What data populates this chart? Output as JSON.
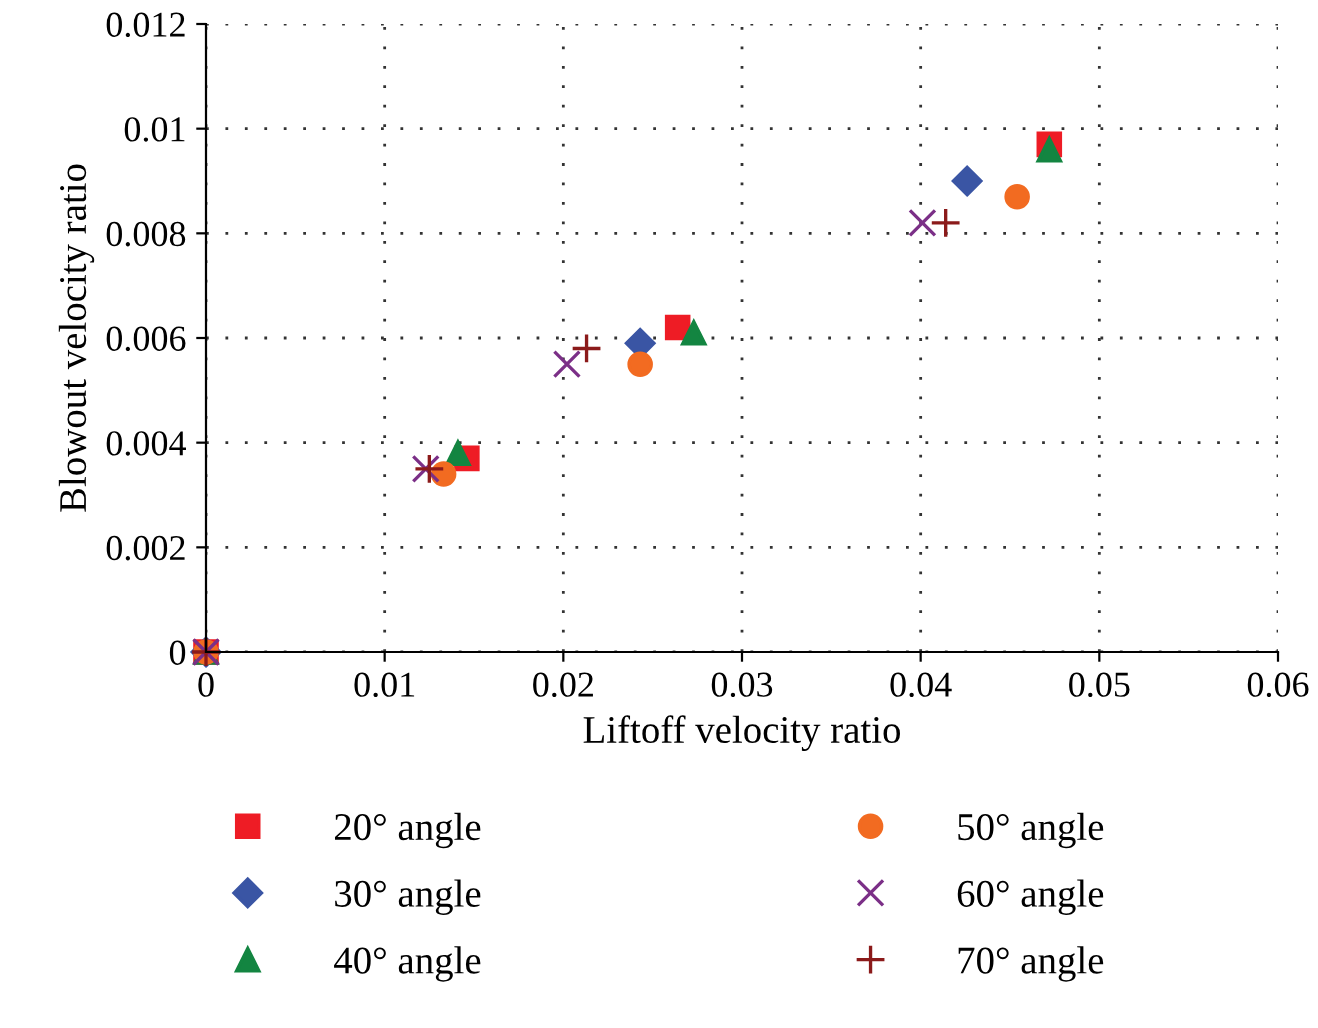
{
  "chart_data": {
    "type": "scatter",
    "xlabel": "Liftoff velocity ratio",
    "ylabel": "Blowout velocity ratio",
    "xlim": [
      0,
      0.06
    ],
    "xticks": [
      0,
      0.01,
      0.02,
      0.03,
      0.04,
      0.05,
      0.06
    ],
    "ylim": [
      0,
      0.012
    ],
    "yticks": [
      0,
      0.002,
      0.004,
      0.006,
      0.008,
      0.01,
      0.012
    ],
    "grid": true,
    "legend": "bottom",
    "series": [
      {
        "name": "20° angle",
        "color": "#ee1c25",
        "marker": "square",
        "x": [
          0,
          0.0146,
          0.0264,
          0.0472
        ],
        "values": [
          0,
          0.0037,
          0.0062,
          0.0097
        ]
      },
      {
        "name": "30° angle",
        "color": "#3a55a4",
        "marker": "diamond",
        "x": [
          0,
          0.0145,
          0.0243,
          0.0426
        ],
        "values": [
          0,
          null,
          0.0059,
          0.009
        ]
      },
      {
        "name": "40° angle",
        "color": "#138541",
        "marker": "triangle",
        "x": [
          0,
          0.0141,
          0.0273,
          0.0472
        ],
        "values": [
          0,
          0.0038,
          0.0061,
          0.0096
        ]
      },
      {
        "name": "50° angle",
        "color": "#f26b21",
        "marker": "circle",
        "x": [
          0,
          0.0133,
          0.0243,
          0.0454
        ],
        "values": [
          0,
          0.0034,
          0.0055,
          0.0087
        ]
      },
      {
        "name": "60° angle",
        "color": "#7b2f87",
        "marker": "cross",
        "x": [
          0,
          0.0123,
          0.0202,
          0.0401
        ],
        "values": [
          0,
          0.0035,
          0.0055,
          0.0082
        ]
      },
      {
        "name": "70° angle",
        "color": "#8b1a1a",
        "marker": "plus",
        "x": [
          0,
          0.0125,
          0.0213,
          0.0414
        ],
        "values": [
          0,
          0.0035,
          0.0058,
          0.0082
        ]
      }
    ]
  }
}
